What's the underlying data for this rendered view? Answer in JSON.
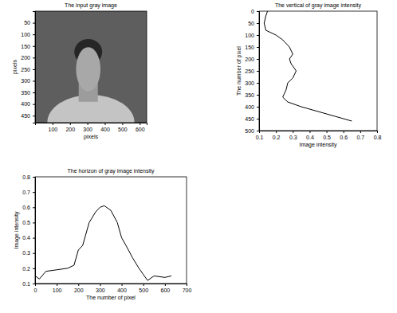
{
  "chart_data": [
    {
      "type": "image",
      "title": "The input gray image",
      "xlabel": "pixels",
      "ylabel": "pixels",
      "xlim": [
        0,
        640
      ],
      "xticks": [
        100,
        200,
        300,
        400,
        500,
        600
      ],
      "ylim": [
        480,
        0
      ],
      "yticks": [
        50,
        100,
        150,
        200,
        250,
        300,
        350,
        400,
        450
      ]
    },
    {
      "type": "line",
      "title": "The vertical of gray image intensity",
      "xlabel": "Image intensity",
      "ylabel": "The number of pixel",
      "xlim": [
        0.1,
        0.8
      ],
      "xticks": [
        0.1,
        0.2,
        0.3,
        0.4,
        0.5,
        0.6,
        0.7,
        0.8
      ],
      "ylim": [
        500,
        0
      ],
      "yticks": [
        0,
        50,
        100,
        150,
        200,
        250,
        300,
        350,
        400,
        450,
        500
      ],
      "series": [
        {
          "color": "#000000",
          "x": [
            0.15,
            0.14,
            0.13,
            0.14,
            0.2,
            0.24,
            0.28,
            0.3,
            0.28,
            0.29,
            0.32,
            0.3,
            0.27,
            0.26,
            0.24,
            0.27,
            0.35,
            0.45,
            0.55,
            0.65
          ],
          "values": [
            0,
            20,
            50,
            80,
            100,
            120,
            150,
            180,
            200,
            220,
            250,
            280,
            300,
            330,
            360,
            380,
            400,
            420,
            440,
            460
          ]
        }
      ]
    },
    {
      "type": "line",
      "title": "The horizon of gray image intensity",
      "xlabel": "The number of pixel",
      "ylabel": "Image intensity",
      "xlim": [
        0,
        700
      ],
      "xticks": [
        0,
        100,
        200,
        300,
        400,
        500,
        600,
        700
      ],
      "ylim": [
        0.1,
        0.8
      ],
      "yticks": [
        0.1,
        0.2,
        0.3,
        0.4,
        0.5,
        0.6,
        0.7,
        0.8
      ],
      "series": [
        {
          "color": "#000000",
          "x": [
            0,
            20,
            50,
            100,
            150,
            180,
            200,
            220,
            250,
            280,
            300,
            320,
            350,
            380,
            400,
            420,
            450,
            480,
            500,
            520,
            550,
            600,
            630
          ],
          "values": [
            0.15,
            0.13,
            0.18,
            0.19,
            0.2,
            0.22,
            0.32,
            0.35,
            0.5,
            0.57,
            0.6,
            0.61,
            0.58,
            0.5,
            0.4,
            0.35,
            0.27,
            0.2,
            0.16,
            0.12,
            0.15,
            0.14,
            0.15
          ]
        }
      ]
    }
  ]
}
